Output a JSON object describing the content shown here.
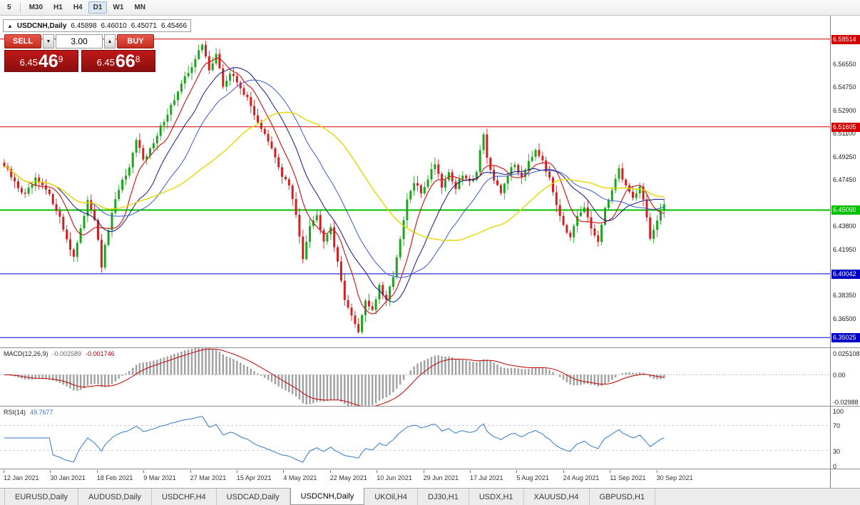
{
  "toolbar": {
    "timeframes": [
      "5",
      "M30",
      "H1",
      "H4",
      "D1",
      "W1",
      "MN"
    ],
    "active": "D1"
  },
  "info_bar": {
    "marker": "▲",
    "symbol": "USDCNH,Daily",
    "ohlc": [
      "6.45898",
      "6.46010",
      "6.45071",
      "6.45466"
    ]
  },
  "trade_panel": {
    "sell_label": "SELL",
    "buy_label": "BUY",
    "volume": "3.00",
    "spin_down": "▼",
    "spin_up": "▲",
    "sell_price": {
      "prefix": "6.45",
      "big": "46",
      "sup": "9"
    },
    "buy_price": {
      "prefix": "6.45",
      "big": "66",
      "sup": "8"
    }
  },
  "macd": {
    "label": "MACD(12,26,9)",
    "value_main": "-0.002589",
    "value_signal": "-0.001746",
    "axis_labels": [
      "0.025108",
      "0.00",
      "-0.02988"
    ]
  },
  "rsi": {
    "label": "RSI(14)",
    "value": "49.7677",
    "axis_ticks": [
      100,
      70,
      30,
      0
    ],
    "levels": [
      70,
      30
    ]
  },
  "time_axis": {
    "dates": [
      "12 Jan 2021",
      "30 Jan 2021",
      "18 Feb 2021",
      "9 Mar 2021",
      "27 Mar 2021",
      "15 Apr 2021",
      "4 May 2021",
      "22 May 2021",
      "10 Jun 2021",
      "29 Jun 2021",
      "17 Jul 2021",
      "5 Aug 2021",
      "24 Aug 2021",
      "11 Sep 2021",
      "30 Sep 2021"
    ]
  },
  "tabs": {
    "items": [
      "EURUSD,Daily",
      "AUDUSD,Daily",
      "USDCHF,H4",
      "USDCAD,Daily",
      "USDCNH,Daily",
      "UKOil,H4",
      "DJ30,H1",
      "USDX,H1",
      "XAUUSD,H4",
      "GBPUSD,H1"
    ],
    "active": "USDCNH,Daily"
  },
  "chart_data": {
    "type": "candlestick",
    "symbol": "USDCNH",
    "timeframe": "Daily",
    "n_candles": 191,
    "price_axis": {
      "max": 6.6035,
      "min": 6.342,
      "ticks": [
        6.5655,
        6.5475,
        6.529,
        6.511,
        6.4925,
        6.4745,
        6.438,
        6.4195,
        6.3835,
        6.365
      ]
    },
    "levels": [
      {
        "price": 6.58514,
        "color": "#d40000",
        "width": 1
      },
      {
        "price": 6.51605,
        "color": "#d40000",
        "width": 1
      },
      {
        "price": 6.4506,
        "color": "#00c000",
        "width": 2
      },
      {
        "price": 6.40042,
        "color": "#0000c8",
        "width": 1
      },
      {
        "price": 6.35025,
        "color": "#0000c8",
        "width": 1
      }
    ],
    "colors": {
      "up": "#1ca51c",
      "down": "#d02020",
      "macd_hist": "#a0a0a0",
      "macd_signal": "#c00000",
      "rsi_line": "#3377cc"
    },
    "moving_averages": [
      {
        "period": 8,
        "color": "#cc2020",
        "width": 1.2
      },
      {
        "period": 16,
        "color": "#15157e",
        "width": 1
      },
      {
        "period": 26,
        "color": "#3a5bd0",
        "width": 1
      },
      {
        "period": 48,
        "color": "#e4d800",
        "width": 1.4
      }
    ],
    "indicators": {
      "macd": {
        "fast": 12,
        "slow": 26,
        "signal": 9
      },
      "rsi": {
        "period": 14
      }
    },
    "macd_axis": {
      "max": 0.025108,
      "min": -0.02988
    },
    "close_keyframes": [
      [
        0,
        6.485
      ],
      [
        3,
        6.472
      ],
      [
        6,
        6.462
      ],
      [
        9,
        6.474
      ],
      [
        12,
        6.466
      ],
      [
        15,
        6.452
      ],
      [
        18,
        6.428
      ],
      [
        20,
        6.414
      ],
      [
        22,
        6.434
      ],
      [
        24,
        6.46
      ],
      [
        26,
        6.444
      ],
      [
        28,
        6.406
      ],
      [
        30,
        6.436
      ],
      [
        33,
        6.468
      ],
      [
        36,
        6.482
      ],
      [
        38,
        6.505
      ],
      [
        40,
        6.492
      ],
      [
        43,
        6.502
      ],
      [
        46,
        6.522
      ],
      [
        49,
        6.538
      ],
      [
        52,
        6.554
      ],
      [
        55,
        6.57
      ],
      [
        57,
        6.58
      ],
      [
        59,
        6.562
      ],
      [
        61,
        6.573
      ],
      [
        63,
        6.548
      ],
      [
        65,
        6.558
      ],
      [
        68,
        6.548
      ],
      [
        71,
        6.532
      ],
      [
        74,
        6.515
      ],
      [
        77,
        6.498
      ],
      [
        80,
        6.478
      ],
      [
        82,
        6.47
      ],
      [
        84,
        6.446
      ],
      [
        86,
        6.414
      ],
      [
        88,
        6.44
      ],
      [
        90,
        6.446
      ],
      [
        92,
        6.428
      ],
      [
        94,
        6.438
      ],
      [
        96,
        6.408
      ],
      [
        98,
        6.382
      ],
      [
        100,
        6.366
      ],
      [
        102,
        6.356
      ],
      [
        104,
        6.38
      ],
      [
        106,
        6.372
      ],
      [
        108,
        6.39
      ],
      [
        110,
        6.378
      ],
      [
        112,
        6.4
      ],
      [
        114,
        6.426
      ],
      [
        116,
        6.458
      ],
      [
        118,
        6.472
      ],
      [
        120,
        6.464
      ],
      [
        122,
        6.476
      ],
      [
        124,
        6.488
      ],
      [
        126,
        6.47
      ],
      [
        128,
        6.48
      ],
      [
        130,
        6.468
      ],
      [
        132,
        6.478
      ],
      [
        134,
        6.472
      ],
      [
        136,
        6.482
      ],
      [
        138,
        6.512
      ],
      [
        139,
        6.492
      ],
      [
        141,
        6.472
      ],
      [
        143,
        6.464
      ],
      [
        145,
        6.479
      ],
      [
        147,
        6.486
      ],
      [
        149,
        6.477
      ],
      [
        151,
        6.49
      ],
      [
        153,
        6.499
      ],
      [
        155,
        6.491
      ],
      [
        157,
        6.474
      ],
      [
        159,
        6.456
      ],
      [
        161,
        6.44
      ],
      [
        163,
        6.428
      ],
      [
        165,
        6.444
      ],
      [
        167,
        6.452
      ],
      [
        169,
        6.436
      ],
      [
        171,
        6.426
      ],
      [
        173,
        6.45
      ],
      [
        175,
        6.468
      ],
      [
        177,
        6.482
      ],
      [
        179,
        6.47
      ],
      [
        181,
        6.46
      ],
      [
        183,
        6.47
      ],
      [
        185,
        6.446
      ],
      [
        186,
        6.428
      ],
      [
        188,
        6.441
      ],
      [
        190,
        6.4546
      ]
    ]
  }
}
